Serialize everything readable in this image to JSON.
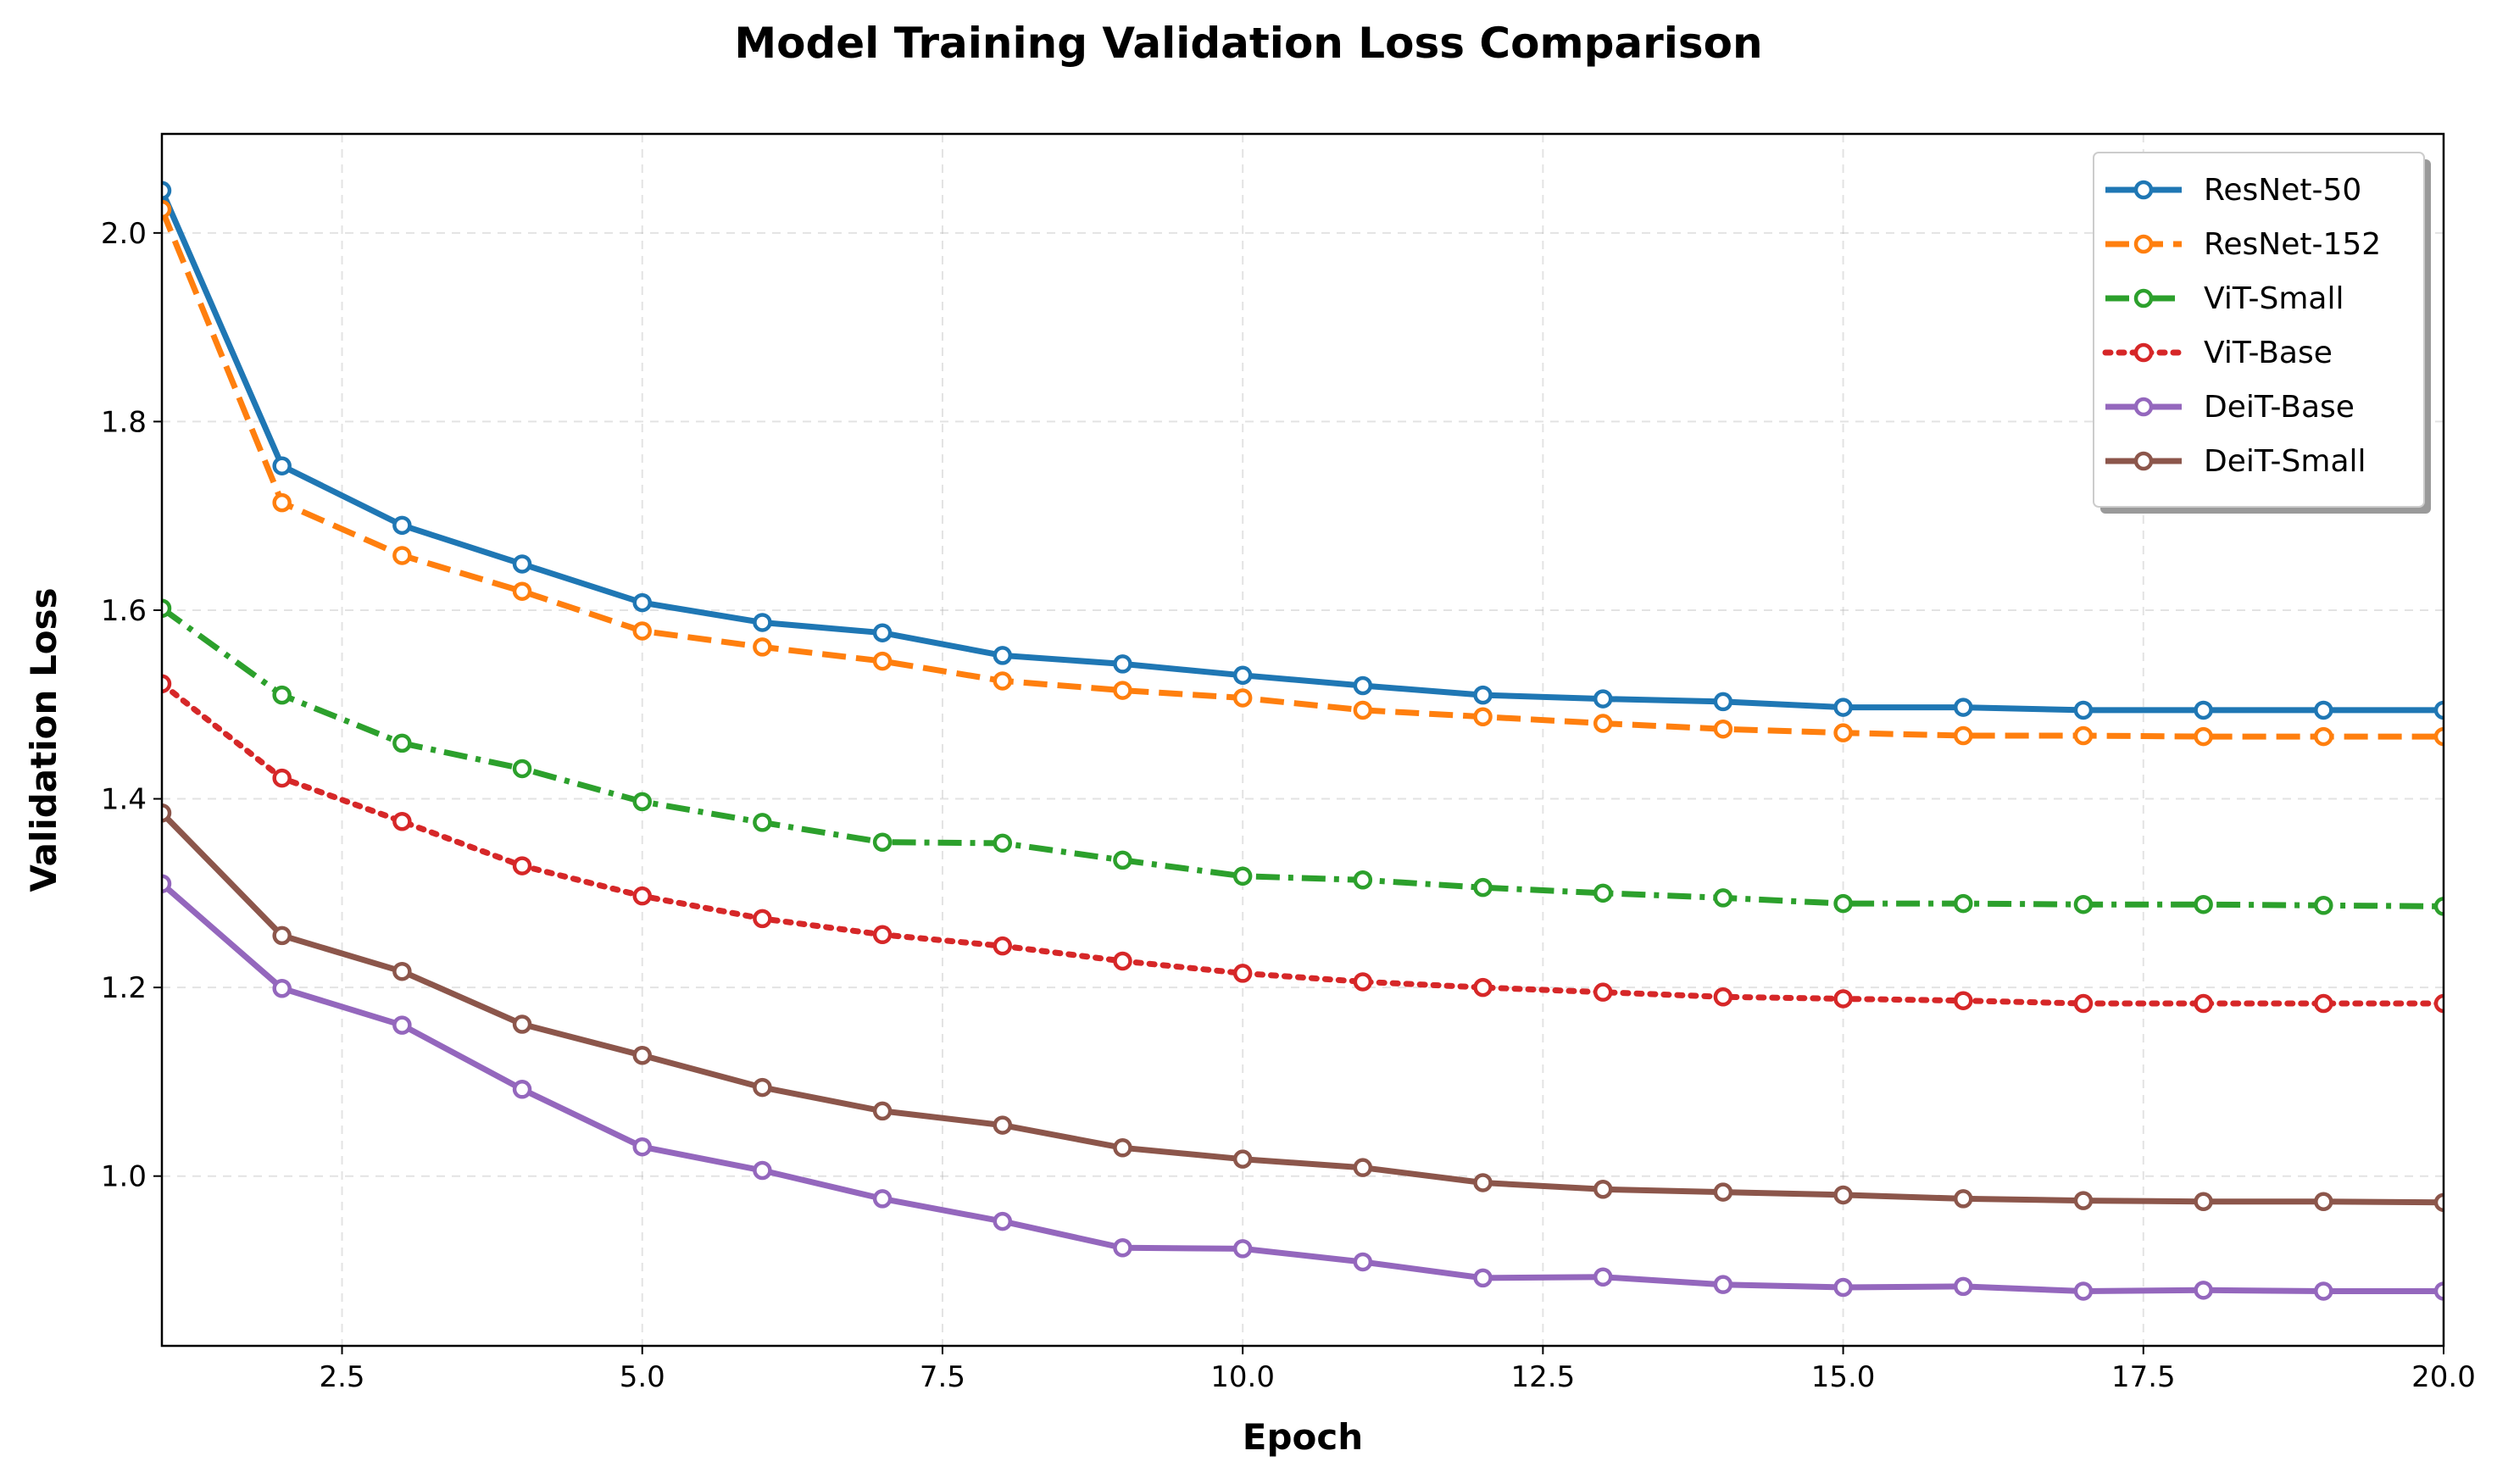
{
  "chart_data": {
    "type": "line",
    "title": "Model Training Validation Loss Comparison",
    "xlabel": "Epoch",
    "ylabel": "Validation Loss",
    "xlim": [
      1,
      20
    ],
    "ylim": [
      0.82,
      2.105
    ],
    "xticks": [
      2.5,
      5.0,
      7.5,
      10.0,
      12.5,
      15.0,
      17.5,
      20.0
    ],
    "xtick_labels": [
      "2.5",
      "5.0",
      "7.5",
      "10.0",
      "12.5",
      "15.0",
      "17.5",
      "20.0"
    ],
    "yticks": [
      1.0,
      1.2,
      1.4,
      1.6,
      1.8,
      2.0
    ],
    "ytick_labels": [
      "1.0",
      "1.2",
      "1.4",
      "1.6",
      "1.8",
      "2.0"
    ],
    "grid": true,
    "legend_position": "top-right",
    "x": [
      1,
      2,
      3,
      4,
      5,
      6,
      7,
      8,
      9,
      10,
      11,
      12,
      13,
      14,
      15,
      16,
      17,
      18,
      19,
      20
    ],
    "series": [
      {
        "name": "ResNet-50",
        "color": "#1f77b4",
        "linestyle": "solid",
        "values": [
          2.045,
          1.753,
          1.69,
          1.649,
          1.608,
          1.587,
          1.576,
          1.552,
          1.543,
          1.531,
          1.52,
          1.51,
          1.506,
          1.503,
          1.497,
          1.497,
          1.494,
          1.494,
          1.494,
          1.494
        ]
      },
      {
        "name": "ResNet-152",
        "color": "#ff7f0e",
        "linestyle": "dashed",
        "values": [
          2.025,
          1.714,
          1.658,
          1.62,
          1.578,
          1.561,
          1.546,
          1.525,
          1.515,
          1.507,
          1.494,
          1.487,
          1.48,
          1.474,
          1.47,
          1.467,
          1.467,
          1.466,
          1.466,
          1.466
        ]
      },
      {
        "name": "ViT-Small",
        "color": "#2ca02c",
        "linestyle": "dashdot",
        "values": [
          1.602,
          1.51,
          1.459,
          1.432,
          1.397,
          1.375,
          1.354,
          1.353,
          1.335,
          1.318,
          1.314,
          1.306,
          1.3,
          1.295,
          1.289,
          1.289,
          1.288,
          1.288,
          1.287,
          1.286
        ]
      },
      {
        "name": "ViT-Base",
        "color": "#d62728",
        "linestyle": "dotted",
        "values": [
          1.522,
          1.422,
          1.376,
          1.329,
          1.297,
          1.273,
          1.256,
          1.244,
          1.228,
          1.215,
          1.206,
          1.2,
          1.195,
          1.19,
          1.188,
          1.186,
          1.183,
          1.183,
          1.183,
          1.183
        ]
      },
      {
        "name": "DeiT-Base",
        "color": "#9467bd",
        "linestyle": "solid",
        "values": [
          1.31,
          1.199,
          1.16,
          1.092,
          1.031,
          1.006,
          0.976,
          0.952,
          0.924,
          0.923,
          0.909,
          0.892,
          0.893,
          0.885,
          0.882,
          0.883,
          0.878,
          0.879,
          0.878,
          0.878
        ]
      },
      {
        "name": "DeiT-Small",
        "color": "#8c564b",
        "linestyle": "solid",
        "values": [
          1.385,
          1.255,
          1.217,
          1.161,
          1.128,
          1.094,
          1.069,
          1.054,
          1.03,
          1.018,
          1.009,
          0.993,
          0.986,
          0.983,
          0.98,
          0.976,
          0.974,
          0.973,
          0.973,
          0.972
        ]
      }
    ]
  }
}
